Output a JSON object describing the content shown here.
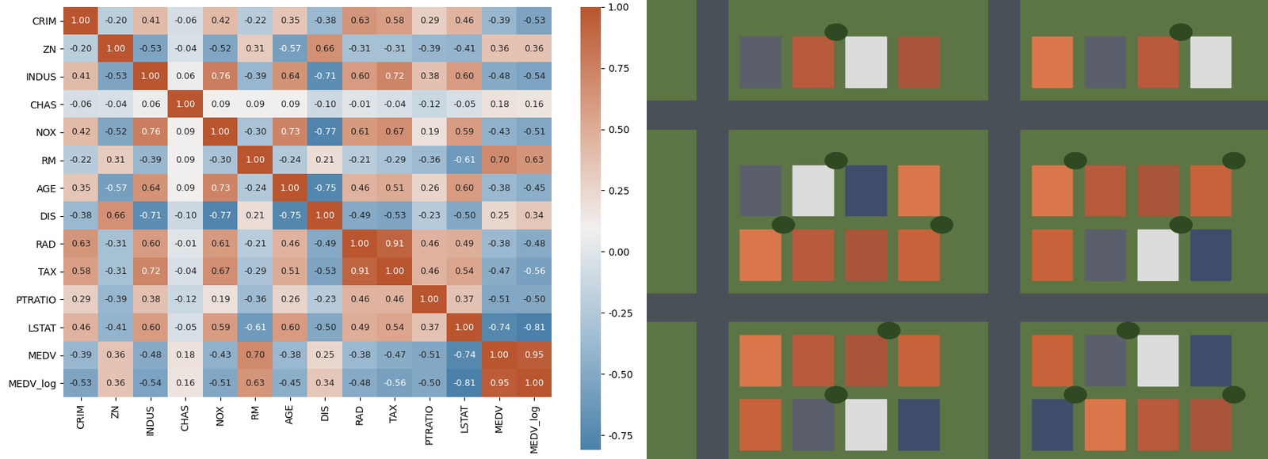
{
  "chart_data": {
    "type": "heatmap",
    "categories": [
      "CRIM",
      "ZN",
      "INDUS",
      "CHAS",
      "NOX",
      "RM",
      "AGE",
      "DIS",
      "RAD",
      "TAX",
      "PTRATIO",
      "LSTAT",
      "MEDV",
      "MEDV_log"
    ],
    "values": [
      [
        1.0,
        -0.2,
        0.41,
        -0.06,
        0.42,
        -0.22,
        0.35,
        -0.38,
        0.63,
        0.58,
        0.29,
        0.46,
        -0.39,
        -0.53
      ],
      [
        -0.2,
        1.0,
        -0.53,
        -0.04,
        -0.52,
        0.31,
        -0.57,
        0.66,
        -0.31,
        -0.31,
        -0.39,
        -0.41,
        0.36,
        0.36
      ],
      [
        0.41,
        -0.53,
        1.0,
        0.06,
        0.76,
        -0.39,
        0.64,
        -0.71,
        0.6,
        0.72,
        0.38,
        0.6,
        -0.48,
        -0.54
      ],
      [
        -0.06,
        -0.04,
        0.06,
        1.0,
        0.09,
        0.09,
        0.09,
        -0.1,
        -0.01,
        -0.04,
        -0.12,
        -0.05,
        0.18,
        0.16
      ],
      [
        0.42,
        -0.52,
        0.76,
        0.09,
        1.0,
        -0.3,
        0.73,
        -0.77,
        0.61,
        0.67,
        0.19,
        0.59,
        -0.43,
        -0.51
      ],
      [
        -0.22,
        0.31,
        -0.39,
        0.09,
        -0.3,
        1.0,
        -0.24,
        0.21,
        -0.21,
        -0.29,
        -0.36,
        -0.61,
        0.7,
        0.63
      ],
      [
        0.35,
        -0.57,
        0.64,
        0.09,
        0.73,
        -0.24,
        1.0,
        -0.75,
        0.46,
        0.51,
        0.26,
        0.6,
        -0.38,
        -0.45
      ],
      [
        -0.38,
        0.66,
        -0.71,
        -0.1,
        -0.77,
        0.21,
        -0.75,
        1.0,
        -0.49,
        -0.53,
        -0.23,
        -0.5,
        0.25,
        0.34
      ],
      [
        0.63,
        -0.31,
        0.6,
        -0.01,
        0.61,
        -0.21,
        0.46,
        -0.49,
        1.0,
        0.91,
        0.46,
        0.49,
        -0.38,
        -0.48
      ],
      [
        0.58,
        -0.31,
        0.72,
        -0.04,
        0.67,
        -0.29,
        0.51,
        -0.53,
        0.91,
        1.0,
        0.46,
        0.54,
        -0.47,
        -0.56
      ],
      [
        0.29,
        -0.39,
        0.38,
        -0.12,
        0.19,
        -0.36,
        0.26,
        -0.23,
        0.46,
        0.46,
        1.0,
        0.37,
        -0.51,
        -0.5
      ],
      [
        0.46,
        -0.41,
        0.6,
        -0.05,
        0.59,
        -0.61,
        0.6,
        -0.5,
        0.49,
        0.54,
        0.37,
        1.0,
        -0.74,
        -0.81
      ],
      [
        -0.39,
        0.36,
        -0.48,
        0.18,
        -0.43,
        0.7,
        -0.38,
        0.25,
        -0.38,
        -0.47,
        -0.51,
        -0.74,
        1.0,
        0.95
      ],
      [
        -0.53,
        0.36,
        -0.54,
        0.16,
        -0.51,
        0.63,
        -0.45,
        0.34,
        -0.48,
        -0.56,
        -0.5,
        -0.81,
        0.95,
        1.0
      ]
    ],
    "value_labels": [
      [
        "1.00",
        "-0.20",
        "0.41",
        "-0.06",
        "0.42",
        "-0.22",
        "0.35",
        "-0.38",
        "0.63",
        "0.58",
        "0.29",
        "0.46",
        "-0.39",
        "-0.53"
      ],
      [
        "-0.20",
        "1.00",
        "-0.53",
        "-0.04",
        "-0.52",
        "0.31",
        "-0.57",
        "0.66",
        "-0.31",
        "-0.31",
        "-0.39",
        "-0.41",
        "0.36",
        "0.36"
      ],
      [
        "0.41",
        "-0.53",
        "1.00",
        "0.06",
        "0.76",
        "-0.39",
        "0.64",
        "-0.71",
        "0.60",
        "0.72",
        "0.38",
        "0.60",
        "-0.48",
        "-0.54"
      ],
      [
        "-0.06",
        "-0.04",
        "0.06",
        "1.00",
        "0.09",
        "0.09",
        "0.09",
        "-0.10",
        "-0.01",
        "-0.04",
        "-0.12",
        "-0.05",
        "0.18",
        "0.16"
      ],
      [
        "0.42",
        "-0.52",
        "0.76",
        "0.09",
        "1.00",
        "-0.30",
        "0.73",
        "-0.77",
        "0.61",
        "0.67",
        "0.19",
        "0.59",
        "-0.43",
        "-0.51"
      ],
      [
        "-0.22",
        "0.31",
        "-0.39",
        "0.09",
        "-0.30",
        "1.00",
        "-0.24",
        "0.21",
        "-0.21",
        "-0.29",
        "-0.36",
        "-0.61",
        "0.70",
        "0.63"
      ],
      [
        "0.35",
        "-0.57",
        "0.64",
        "0.09",
        "0.73",
        "-0.24",
        "1.00",
        "-0.75",
        "0.46",
        "0.51",
        "0.26",
        "0.60",
        "-0.38",
        "-0.45"
      ],
      [
        "-0.38",
        "0.66",
        "-0.71",
        "-0.10",
        "-0.77",
        "0.21",
        "-0.75",
        "1.00",
        "-0.49",
        "-0.53",
        "-0.23",
        "-0.50",
        "0.25",
        "0.34"
      ],
      [
        "0.63",
        "-0.31",
        "0.60",
        "-0.01",
        "0.61",
        "-0.21",
        "0.46",
        "-0.49",
        "1.00",
        "0.91",
        "0.46",
        "0.49",
        "-0.38",
        "-0.48"
      ],
      [
        "0.58",
        "-0.31",
        "0.72",
        "-0.04",
        "0.67",
        "-0.29",
        "0.51",
        "-0.53",
        "0.91",
        "1.00",
        "0.46",
        "0.54",
        "-0.47",
        "-0.56"
      ],
      [
        "0.29",
        "-0.39",
        "0.38",
        "-0.12",
        "0.19",
        "-0.36",
        "0.26",
        "-0.23",
        "0.46",
        "0.46",
        "1.00",
        "0.37",
        "-0.51",
        "-0.50"
      ],
      [
        "0.46",
        "-0.41",
        "0.60",
        "-0.05",
        "0.59",
        "-0.61",
        "0.60",
        "-0.50",
        "0.49",
        "0.54",
        "0.37",
        "1.00",
        "-0.74",
        "-0.81"
      ],
      [
        "-0.39",
        "0.36",
        "-0.48",
        "0.18",
        "-0.43",
        "0.70",
        "-0.38",
        "0.25",
        "-0.38",
        "-0.47",
        "-0.51",
        "-0.74",
        "1.00",
        "0.95"
      ],
      [
        "-0.53",
        "0.36",
        "-0.54",
        "0.16",
        "-0.51",
        "0.63",
        "-0.45",
        "0.34",
        "-0.48",
        "-0.56",
        "-0.50",
        "-0.81",
        "0.95",
        "1.00"
      ]
    ],
    "data_labels": true,
    "colorbar": {
      "range": [
        -0.81,
        1.0
      ],
      "ticks": [
        {
          "value": 1.0,
          "label": "1.00"
        },
        {
          "value": 0.75,
          "label": "0.75"
        },
        {
          "value": 0.5,
          "label": "0.50"
        },
        {
          "value": 0.25,
          "label": "0.25"
        },
        {
          "value": 0.0,
          "label": "0.00"
        },
        {
          "value": -0.25,
          "label": "-0.25"
        },
        {
          "value": -0.5,
          "label": "-0.50"
        },
        {
          "value": -0.75,
          "label": "-0.75"
        }
      ]
    }
  }
}
